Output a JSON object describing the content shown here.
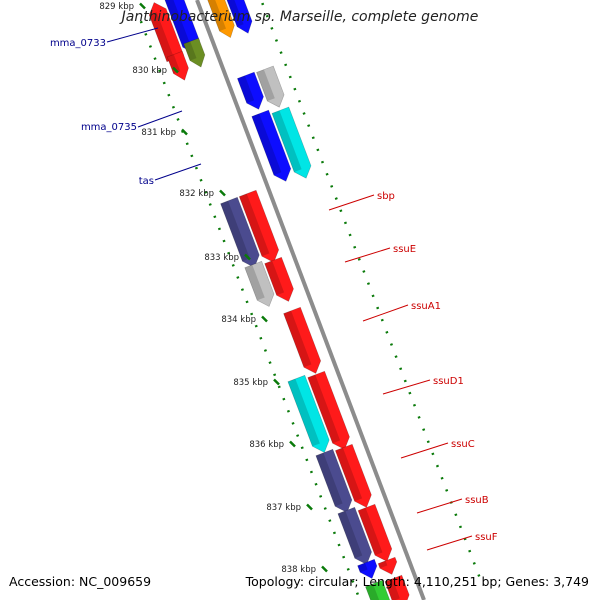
{
  "title": "Janthinobacterium sp. Marseille, complete genome",
  "footer": {
    "accession": "Accession: NC_009659",
    "topology": "Topology: circular; Length: 4,110,251 bp; Genes: 3,749"
  },
  "colors": {
    "backbone": "#8c8c8c",
    "ruler_tick": "#0a7a0a",
    "left_label": "#00008b",
    "right_label": "#cc0000",
    "red_gene": "#ff1a1a",
    "navy_gene": "#4b4b8f",
    "blue_gene": "#0d0dff",
    "cyan_gene": "#00e5e5",
    "grey_gene": "#c0c0c0",
    "olive_gene": "#6b8e23",
    "orange_gene": "#ff9900",
    "green_gene": "#33cc33"
  },
  "ruler_kbp": [
    829,
    830,
    831,
    832,
    833,
    834,
    835,
    836,
    837,
    838
  ],
  "ruler_labels": [
    "829 kbp",
    "830 kbp",
    "831 kbp",
    "832 kbp",
    "833 kbp",
    "834 kbp",
    "835 kbp",
    "836 kbp",
    "837 kbp",
    "838 kbp"
  ],
  "gene_labels_left": [
    "mma_0733",
    "mma_0735",
    "tas"
  ],
  "gene_labels_right": [
    "sbp",
    "ssuE",
    "ssuA1",
    "ssuD1",
    "ssuC",
    "ssuB",
    "ssuF"
  ]
}
